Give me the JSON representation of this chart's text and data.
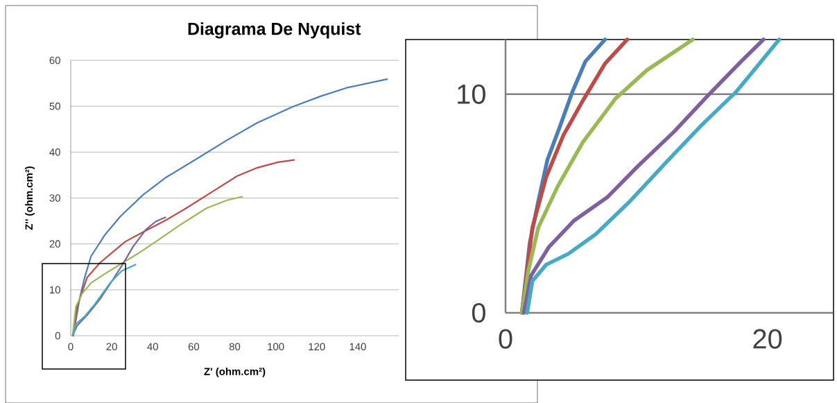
{
  "chart_data": [
    {
      "type": "line",
      "title": "Diagrama De Nyquist",
      "xlabel": "Z' (ohm.cm²)",
      "ylabel": "Z'' (ohm.cm²)",
      "xlim": [
        0,
        160
      ],
      "xticks": [
        0,
        20,
        40,
        60,
        80,
        100,
        120,
        140
      ],
      "ylim": [
        0,
        60
      ],
      "yticks": [
        0,
        10,
        20,
        30,
        40,
        50,
        60
      ],
      "grid": "y",
      "series": [
        {
          "color": "#4a7ebb",
          "x": [
            1.2,
            4.3,
            6.8,
            9.9,
            16.7,
            24.2,
            35.3,
            46.5,
            61.3,
            76.2,
            91,
            108.4,
            122,
            134.5,
            154.3
          ],
          "values": [
            0,
            8,
            12.7,
            17.3,
            22,
            26,
            30.7,
            34.5,
            38.5,
            42.6,
            46.4,
            49.9,
            52.2,
            54,
            55.9
          ]
        },
        {
          "color": "#be4b48",
          "x": [
            1.2,
            3.1,
            8,
            14.3,
            20.4,
            26.6,
            35.3,
            46.5,
            56.4,
            68.8,
            81.2,
            91,
            101,
            108.9
          ],
          "values": [
            0,
            6.3,
            12.7,
            15.9,
            18.2,
            20.5,
            22.6,
            25.2,
            27.8,
            31.3,
            34.8,
            36.6,
            37.8,
            38.3
          ]
        },
        {
          "color": "#98b954",
          "x": [
            0.9,
            2.5,
            5.6,
            9.9,
            16.7,
            25.4,
            32.8,
            41.5,
            53.9,
            66.3,
            76.2,
            83.6
          ],
          "values": [
            0,
            6.3,
            9.2,
            11.5,
            13.5,
            15.9,
            17.9,
            20.5,
            24.3,
            27.8,
            29.5,
            30.3
          ]
        },
        {
          "color": "#7d60a0",
          "x": [
            0.9,
            3.1,
            8,
            14.3,
            20.4,
            25.4,
            30.4,
            36.6,
            41.5,
            46.2
          ],
          "values": [
            0,
            2.2,
            4.5,
            8,
            12.1,
            15.6,
            19.4,
            23.1,
            24.9,
            25.8
          ]
        },
        {
          "color": "#46aac5",
          "x": [
            1.2,
            2.5,
            6.8,
            11.8,
            19.2,
            24.8,
            31.6
          ],
          "values": [
            0,
            2.5,
            4.2,
            6.9,
            11.5,
            14.1,
            15.5
          ]
        }
      ]
    },
    {
      "type": "line",
      "xlim": [
        0,
        25
      ],
      "xticks": [
        0,
        20
      ],
      "ylim": [
        0,
        12.5
      ],
      "yticks": [
        0,
        10
      ],
      "grid": "y",
      "series": [
        {
          "color": "#4a7ebb",
          "x": [
            1.25,
            1.85,
            2.5,
            3.2,
            4.2,
            5.1,
            6.1,
            7.6
          ],
          "values": [
            0,
            3.2,
            5.1,
            7.0,
            8.6,
            10.1,
            11.5,
            12.5
          ]
        },
        {
          "color": "#be4b48",
          "x": [
            1.25,
            2.05,
            3.1,
            4.4,
            5.9,
            7.6,
            9.3
          ],
          "values": [
            0,
            3.9,
            6.2,
            8.1,
            9.7,
            11.4,
            12.5
          ]
        },
        {
          "color": "#98b954",
          "x": [
            1.25,
            1.75,
            2.5,
            4.0,
            5.9,
            8.4,
            10.8,
            14.3
          ],
          "values": [
            0,
            1.95,
            3.9,
            5.8,
            7.8,
            9.8,
            11.1,
            12.5
          ]
        },
        {
          "color": "#7d60a0",
          "x": [
            1.4,
            1.95,
            3.3,
            5.2,
            7.8,
            10.1,
            12.9,
            15.4,
            18.0,
            19.7
          ],
          "values": [
            0,
            1.7,
            3.0,
            4.2,
            5.3,
            6.7,
            8.3,
            9.9,
            11.5,
            12.5
          ]
        },
        {
          "color": "#46aac5",
          "x": [
            1.65,
            2.05,
            3.1,
            4.8,
            6.9,
            9.5,
            12.3,
            15.0,
            17.6,
            20.9
          ],
          "values": [
            0,
            1.45,
            2.2,
            2.7,
            3.6,
            5.1,
            6.9,
            8.6,
            10.1,
            12.5
          ]
        }
      ]
    }
  ]
}
